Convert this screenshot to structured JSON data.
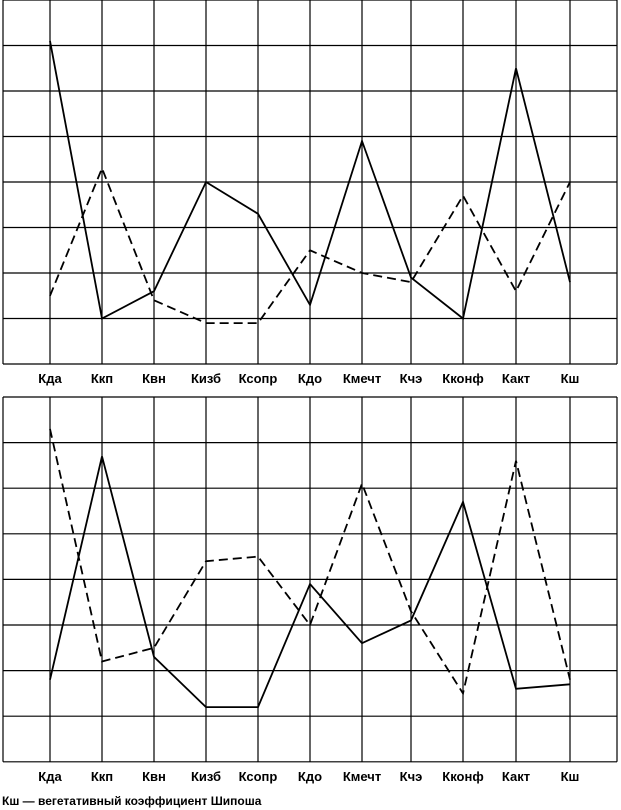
{
  "chart_data": [
    {
      "type": "line",
      "categories": [
        "Кда",
        "Ккп",
        "Квн",
        "Кизб",
        "Ксопр",
        "Кдо",
        "Кмечт",
        "Кчэ",
        "Кконф",
        "Какт",
        "Кш"
      ],
      "ylim": [
        0,
        8
      ],
      "grid": true,
      "series": [
        {
          "style": "solid",
          "values": [
            7.1,
            1.0,
            1.6,
            4.0,
            3.3,
            1.3,
            4.9,
            1.9,
            1.0,
            6.5,
            1.8
          ]
        },
        {
          "style": "dashed",
          "values": [
            1.5,
            4.3,
            1.4,
            0.9,
            0.9,
            2.5,
            2.0,
            1.8,
            3.7,
            1.6,
            4.0
          ]
        }
      ]
    },
    {
      "type": "line",
      "categories": [
        "Кда",
        "Ккп",
        "Квн",
        "Кизб",
        "Ксопр",
        "Кдо",
        "Кмечт",
        "Кчэ",
        "Кконф",
        "Какт",
        "Кш"
      ],
      "ylim": [
        0,
        8
      ],
      "grid": true,
      "series": [
        {
          "style": "solid",
          "values": [
            1.8,
            6.7,
            2.3,
            1.2,
            1.2,
            3.9,
            2.6,
            3.1,
            5.7,
            1.6,
            1.7
          ]
        },
        {
          "style": "dashed",
          "values": [
            7.3,
            2.2,
            2.5,
            4.4,
            4.5,
            3.0,
            6.1,
            3.3,
            1.5,
            6.6,
            1.8
          ]
        }
      ]
    }
  ],
  "footnote": "Кш — вегетативный коэффициент Шипоша"
}
